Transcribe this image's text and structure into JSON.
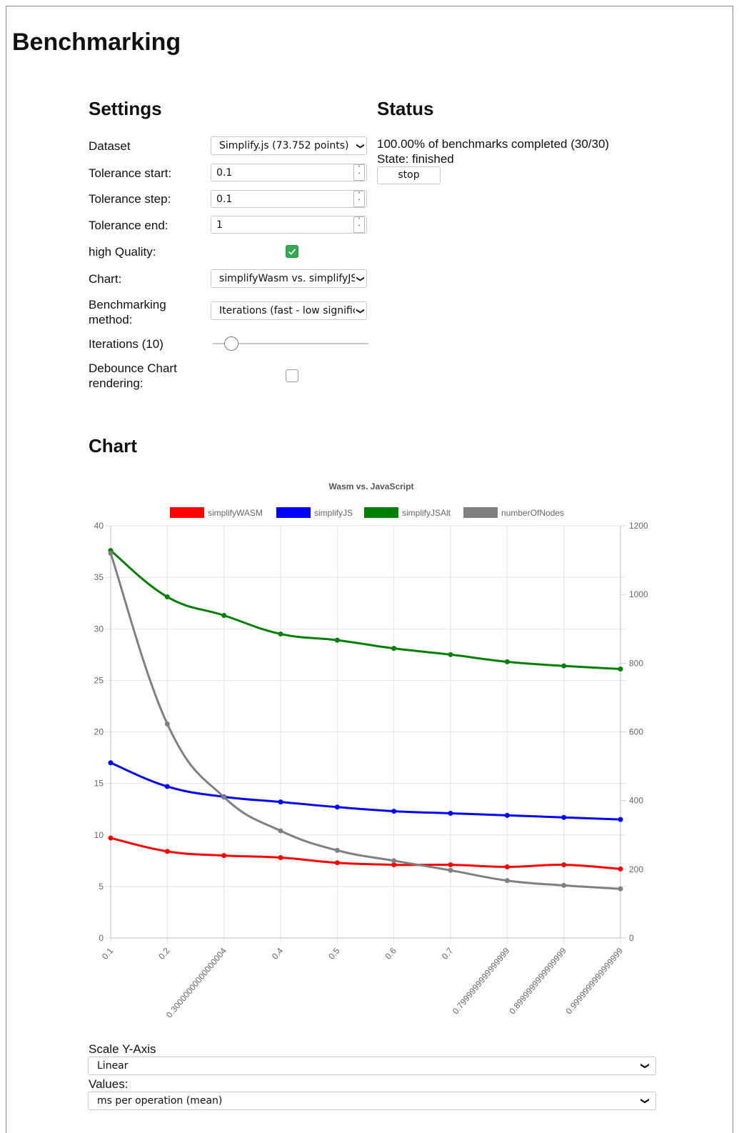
{
  "page": {
    "title": "Benchmarking"
  },
  "settings": {
    "heading": "Settings",
    "dataset_label": "Dataset",
    "dataset_value": "Simplify.js (73.752 points)",
    "tolerance_start_label": "Tolerance start:",
    "tolerance_start_value": "0.1",
    "tolerance_step_label": "Tolerance step:",
    "tolerance_step_value": "0.1",
    "tolerance_end_label": "Tolerance end:",
    "tolerance_end_value": "1",
    "high_quality_label": "high Quality:",
    "high_quality_checked": true,
    "chart_label": "Chart:",
    "chart_value": "simplifyWasm vs. simplifyJS",
    "method_label": "Benchmarking method:",
    "method_value": "Iterations (fast - low significance)",
    "iterations_label": "Iterations (10)",
    "iterations_value": 10,
    "debounce_label": "Debounce Chart rendering:",
    "debounce_checked": false
  },
  "status": {
    "heading": "Status",
    "progress_text": "100.00% of benchmarks completed (30/30)",
    "state_text": "State: finished",
    "stop_label": "stop"
  },
  "chart_section": {
    "heading": "Chart"
  },
  "chart_data": {
    "type": "line",
    "title": "Wasm vs. JavaScript",
    "legend_position": "top",
    "grid": true,
    "categories": [
      "0.1",
      "0.2",
      "0.30000000000000004",
      "0.4",
      "0.5",
      "0.6",
      "0.7",
      "0.7999999999999999",
      "0.8999999999999999",
      "0.9999999999999999"
    ],
    "y_left": {
      "min": 0,
      "max": 40,
      "ticks": [
        0,
        5,
        10,
        15,
        20,
        25,
        30,
        35,
        40
      ]
    },
    "y_right": {
      "min": 0,
      "max": 1200,
      "ticks": [
        0,
        200,
        400,
        600,
        800,
        1000,
        1200
      ]
    },
    "series": [
      {
        "name": "simplifyWASM",
        "color": "#ff0000",
        "axis": "left",
        "values": [
          9.7,
          8.4,
          8.0,
          7.8,
          7.3,
          7.1,
          7.1,
          6.9,
          7.1,
          6.7
        ]
      },
      {
        "name": "simplifyJS",
        "color": "#0000ff",
        "axis": "left",
        "values": [
          17.0,
          14.7,
          13.7,
          13.2,
          12.7,
          12.3,
          12.1,
          11.9,
          11.7,
          11.5
        ]
      },
      {
        "name": "simplifyJSAlt",
        "color": "#008000",
        "axis": "left",
        "values": [
          37.6,
          33.1,
          31.3,
          29.5,
          28.9,
          28.1,
          27.5,
          26.8,
          26.4,
          26.1
        ]
      },
      {
        "name": "numberOfNodes",
        "color": "#808080",
        "axis": "right",
        "values": [
          1120,
          623,
          410,
          312,
          255,
          225,
          197,
          167,
          153,
          143
        ]
      }
    ]
  },
  "bottom": {
    "scale_label": "Scale Y-Axis",
    "scale_value": "Linear",
    "values_label": "Values:",
    "values_value": "ms per operation (mean)"
  }
}
